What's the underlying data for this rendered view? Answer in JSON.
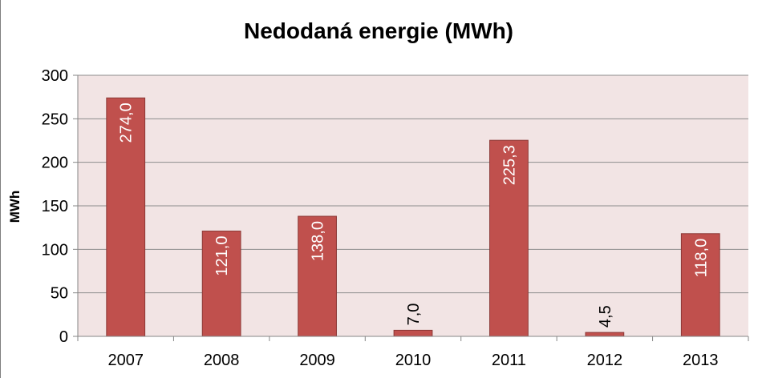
{
  "chart_data": {
    "type": "bar",
    "title": "Nedodaná energie (MWh)",
    "xlabel": "",
    "ylabel": "MWh",
    "categories": [
      "2007",
      "2008",
      "2009",
      "2010",
      "2011",
      "2012",
      "2013"
    ],
    "values": [
      274.0,
      121.0,
      138.0,
      7.0,
      225.3,
      4.5,
      118.0
    ],
    "data_labels": [
      "274,0",
      "121,0",
      "138,0",
      "7,0",
      "225,3",
      "4,5",
      "118,0"
    ],
    "ylim": [
      0,
      300
    ],
    "yticks": [
      0,
      50,
      100,
      150,
      200,
      250,
      300
    ],
    "ytick_labels": [
      "0",
      "50",
      "100",
      "150",
      "200",
      "250",
      "300"
    ],
    "grid": true,
    "legend": "none",
    "colors": {
      "bar_fill": "#C0504D",
      "bar_stroke": "#8C3836",
      "plot_background": "#F2E4E4",
      "gridline": "#8C8C8C",
      "axis": "#868686",
      "text": "#000000",
      "label_inside": "#FFFFFF"
    }
  }
}
